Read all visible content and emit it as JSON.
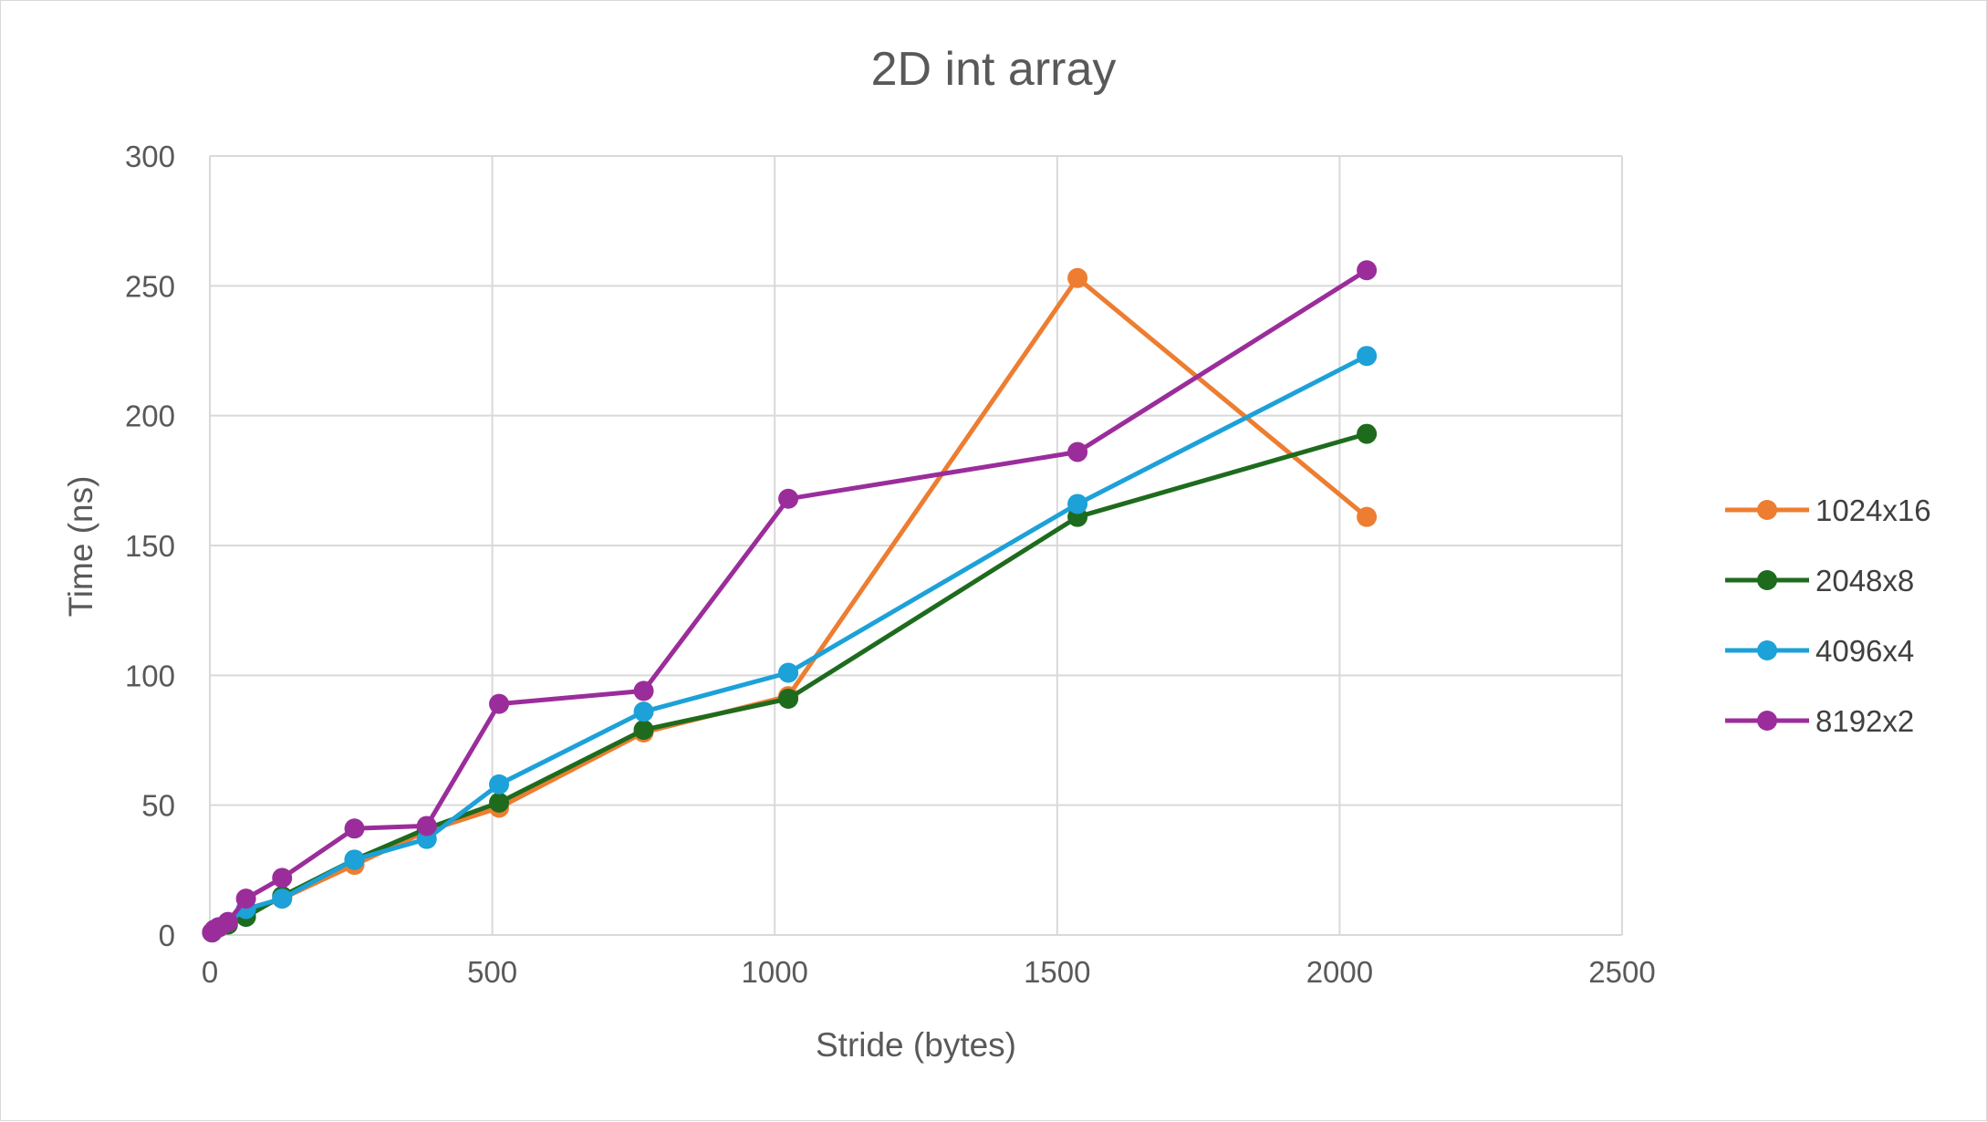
{
  "chart_data": {
    "type": "scatter",
    "title": "2D int array",
    "xlabel": "Stride (bytes)",
    "ylabel": "Time (ns)",
    "xlim": [
      0,
      2500
    ],
    "ylim": [
      0,
      300
    ],
    "xticks": [
      0,
      500,
      1000,
      1500,
      2000,
      2500
    ],
    "yticks": [
      0,
      50,
      100,
      150,
      200,
      250,
      300
    ],
    "x_tick_labels": [
      "0",
      "500",
      "1000",
      "1500",
      "2000",
      "2500"
    ],
    "y_tick_labels": [
      "0",
      "50",
      "100",
      "150",
      "200",
      "250",
      "300"
    ],
    "grid": true,
    "legend_position": "right",
    "markers": "circle",
    "lines": "straight",
    "series": [
      {
        "name": "1024x16",
        "color": "#ED7D31",
        "x": [
          4,
          8,
          16,
          32,
          64,
          128,
          256,
          384,
          512,
          768,
          1024,
          1536,
          2048
        ],
        "y": [
          1,
          2,
          3,
          5,
          9,
          14,
          27,
          40,
          49,
          78,
          92,
          253,
          161
        ]
      },
      {
        "name": "2048x8",
        "color": "#1E6B1E",
        "x": [
          4,
          8,
          16,
          32,
          64,
          128,
          256,
          384,
          512,
          768,
          1024,
          1536,
          2048
        ],
        "y": [
          1,
          2,
          3,
          4,
          7,
          15,
          29,
          41,
          51,
          79,
          91,
          161,
          193
        ]
      },
      {
        "name": "4096x4",
        "color": "#1CA1D8",
        "x": [
          4,
          8,
          16,
          32,
          64,
          128,
          256,
          384,
          512,
          768,
          1024,
          1536,
          2048
        ],
        "y": [
          1,
          2,
          3,
          5,
          10,
          14,
          29,
          37,
          58,
          86,
          101,
          166,
          223
        ]
      },
      {
        "name": "8192x2",
        "color": "#9B2D9B",
        "x": [
          4,
          8,
          16,
          32,
          64,
          128,
          256,
          384,
          512,
          768,
          1024,
          1536,
          2048
        ],
        "y": [
          1,
          2,
          3,
          5,
          14,
          22,
          41,
          42,
          89,
          94,
          168,
          186,
          256
        ]
      }
    ]
  }
}
